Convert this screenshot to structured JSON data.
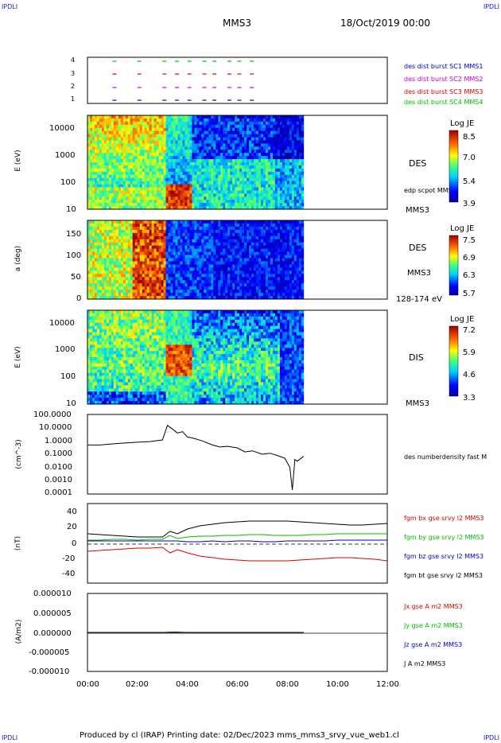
{
  "corners": {
    "tl": "IPDLI",
    "tr": "IPDLI",
    "bl": "IPDLI",
    "br": "IPDLI"
  },
  "header": {
    "title": "MMS3",
    "date": "18/Oct/2019 00:00"
  },
  "footer": {
    "text": "Produced by cl (IRAP)   Printing date: 02/Dec/2023   mms_mms3_srvy_vue_web1.cl"
  },
  "colors": {
    "mms1": "#0000cc",
    "mms2": "#cc00cc",
    "mms3": "#dd0000",
    "mms4": "#00bb00",
    "bt": "#000000"
  },
  "x_axis": {
    "ticks": [
      "00:00",
      "02:00",
      "04:00",
      "06:00",
      "08:00",
      "10:00",
      "12:00"
    ],
    "range_hours": [
      0,
      12
    ]
  },
  "panel_burst": {
    "yticks": [
      "4",
      "3",
      "2",
      "1"
    ],
    "legend": [
      "des dist burst SC1 MMS1",
      "des dist burst SC2 MMS2",
      "des dist burst SC3 MMS3",
      "des dist burst SC4 MMS4"
    ]
  },
  "panel_des_energy": {
    "ylabel": "E (eV)",
    "yticks": [
      "10000",
      "1000",
      "100",
      "10"
    ],
    "title": "DES",
    "sublabel": "edp scpot MMS3",
    "spacecraft": "MMS3",
    "colorbar": {
      "title": "Log JE",
      "ticks": [
        "8.5",
        "7.0",
        "5.4",
        "3.9"
      ]
    }
  },
  "panel_des_pitch": {
    "ylabel": "a (deg)",
    "yticks": [
      "150",
      "100",
      "50",
      "0"
    ],
    "title": "DES",
    "spacecraft": "MMS3",
    "energy_range": "128-174 eV",
    "colorbar": {
      "title": "Log JE",
      "ticks": [
        "7.5",
        "6.9",
        "6.3",
        "5.7"
      ]
    }
  },
  "panel_dis_energy": {
    "ylabel": "E (eV)",
    "yticks": [
      "10000",
      "1000",
      "100",
      "10"
    ],
    "title": "DIS",
    "spacecraft": "MMS3",
    "colorbar": {
      "title": "Log JE",
      "ticks": [
        "7.2",
        "5.9",
        "4.6",
        "3.3"
      ]
    }
  },
  "panel_density": {
    "ylabel": "(cm^-3)",
    "yticks": [
      "100.0000",
      "10.0000",
      "1.0000",
      "0.1000",
      "0.0100",
      "0.0010",
      "0.0001"
    ],
    "legend": "des numberdensity fast M"
  },
  "panel_field": {
    "ylabel": "(nT)",
    "yticks": [
      "40",
      "20",
      "0",
      "-20",
      "-40"
    ],
    "legend": [
      "fgm bx gse srvy l2 MMS3",
      "fgm by gse srvy l2 MMS3",
      "fgm bz gse srvy l2 MMS3",
      "fgm bt gse srvy l2 MMS3"
    ]
  },
  "panel_current": {
    "ylabel": "(A/m2)",
    "yticks": [
      "0.000010",
      "0.000005",
      "0.000000",
      "-0.000005",
      "-0.000010"
    ],
    "legend": [
      "Jx gse A m2 MMS3",
      "Jy gse A m2 MMS3",
      "Jz gse A m2 MMS3",
      "J A m2 MMS3"
    ]
  },
  "chart_data": [
    {
      "type": "scatter",
      "title": "des dist burst availability",
      "series": [
        {
          "name": "des dist burst SC1 MMS1",
          "y": 1,
          "x_hours": [
            1.0,
            2.0,
            3.0,
            3.5,
            4.0,
            4.6,
            5.0,
            5.6,
            6.0,
            6.5
          ]
        },
        {
          "name": "des dist burst SC2 MMS2",
          "y": 2,
          "x_hours": [
            1.0,
            2.0,
            3.0,
            3.5,
            4.0,
            4.6,
            5.0,
            5.6,
            6.0,
            6.5
          ]
        },
        {
          "name": "des dist burst SC3 MMS3",
          "y": 3,
          "x_hours": [
            1.0,
            2.0,
            3.0,
            3.5,
            4.0,
            4.6,
            5.0,
            5.6,
            6.0,
            6.5
          ]
        },
        {
          "name": "des dist burst SC4 MMS4",
          "y": 4,
          "x_hours": [
            1.0,
            2.0,
            3.0,
            3.5,
            4.0,
            4.6,
            5.0,
            5.6,
            6.0,
            6.5
          ]
        }
      ]
    },
    {
      "type": "heatmap",
      "title": "DES",
      "ylabel": "E (eV)",
      "yscale": "log",
      "ylim": [
        10,
        20000
      ],
      "xlim_hours": [
        0,
        8.65
      ],
      "zlabel": "Log JE",
      "zlim": [
        3.9,
        8.5
      ]
    },
    {
      "type": "heatmap",
      "title": "DES",
      "ylabel": "a (deg)",
      "ylim": [
        0,
        180
      ],
      "xlim_hours": [
        0,
        8.65
      ],
      "zlabel": "Log JE",
      "zlim": [
        5.7,
        7.5
      ]
    },
    {
      "type": "heatmap",
      "title": "DIS",
      "ylabel": "E (eV)",
      "yscale": "log",
      "ylim": [
        10,
        20000
      ],
      "xlim_hours": [
        0,
        8.65
      ],
      "zlabel": "Log JE",
      "zlim": [
        3.3,
        7.2
      ]
    },
    {
      "type": "line",
      "ylabel": "(cm^-3)",
      "yscale": "log",
      "ylim": [
        0.0001,
        100
      ],
      "series": [
        {
          "name": "des numberdensity fast M",
          "x": [
            0,
            0.5,
            1.0,
            1.5,
            2.0,
            2.5,
            3.0,
            3.2,
            3.4,
            3.6,
            3.8,
            4.0,
            4.3,
            4.6,
            5.0,
            5.3,
            5.6,
            6.0,
            6.3,
            6.6,
            7.0,
            7.3,
            7.6,
            7.9,
            8.1,
            8.2,
            8.3,
            8.4,
            8.65
          ],
          "y": [
            0.5,
            0.5,
            0.6,
            0.7,
            0.8,
            0.9,
            1.2,
            15,
            8,
            4,
            5,
            2,
            1.5,
            1.0,
            0.5,
            0.35,
            0.4,
            0.3,
            0.15,
            0.18,
            0.1,
            0.12,
            0.08,
            0.05,
            0.01,
            0.0002,
            0.04,
            0.03,
            0.07
          ]
        }
      ]
    },
    {
      "type": "line",
      "ylabel": "(nT)",
      "ylim": [
        -50,
        50
      ],
      "x": [
        0,
        0.5,
        1.0,
        1.5,
        2.0,
        2.5,
        3.0,
        3.3,
        3.6,
        4.0,
        4.5,
        5.0,
        5.5,
        6.0,
        6.5,
        7.0,
        7.5,
        8.0,
        8.5,
        9.0,
        9.5,
        10.0,
        10.5,
        11.0,
        11.5,
        12.0
      ],
      "series": [
        {
          "name": "fgm bx gse srvy l2 MMS3",
          "y": [
            -10,
            -9,
            -8,
            -7,
            -6,
            -6,
            -5,
            -12,
            -8,
            -12,
            -16,
            -18,
            -20,
            -21,
            -22,
            -22,
            -22,
            -22,
            -21,
            -20,
            -19,
            -18,
            -18,
            -19,
            -20,
            -22
          ]
        },
        {
          "name": "fgm by gse srvy l2 MMS3",
          "y": [
            4,
            4,
            5,
            5,
            4,
            5,
            5,
            10,
            6,
            8,
            9,
            9,
            10,
            10,
            11,
            11,
            10,
            10,
            10,
            11,
            11,
            12,
            12,
            12,
            12,
            12
          ]
        },
        {
          "name": "fgm bz gse srvy l2 MMS3",
          "y": [
            3,
            3,
            3,
            3,
            3,
            3,
            3,
            3,
            3,
            2,
            2,
            3,
            2,
            3,
            3,
            2,
            2,
            3,
            3,
            3,
            3,
            4,
            4,
            4,
            4,
            4
          ]
        },
        {
          "name": "fgm bt gse srvy l2 MMS3",
          "y": [
            12,
            11,
            10,
            9,
            8,
            8,
            8,
            15,
            12,
            18,
            22,
            24,
            26,
            27,
            28,
            28,
            28,
            28,
            27,
            26,
            25,
            24,
            23,
            23,
            24,
            25
          ]
        }
      ]
    },
    {
      "type": "line",
      "ylabel": "(A/m2)",
      "ylim": [
        -1e-05,
        1e-05
      ],
      "x": [
        0,
        3.0,
        3.3,
        3.6,
        4.0,
        6.0,
        8.65
      ],
      "series": [
        {
          "name": "Jx gse A m2 MMS3",
          "y": [
            0,
            0,
            0,
            0,
            0,
            0,
            0
          ]
        },
        {
          "name": "Jy gse A m2 MMS3",
          "y": [
            0,
            0,
            0,
            0,
            0,
            0,
            0
          ]
        },
        {
          "name": "Jz gse A m2 MMS3",
          "y": [
            0,
            0,
            0,
            0,
            0,
            0,
            0
          ]
        },
        {
          "name": "J A m2 MMS3",
          "y": [
            0,
            0,
            1e-07,
            1e-07,
            0,
            0,
            0
          ]
        }
      ]
    }
  ]
}
